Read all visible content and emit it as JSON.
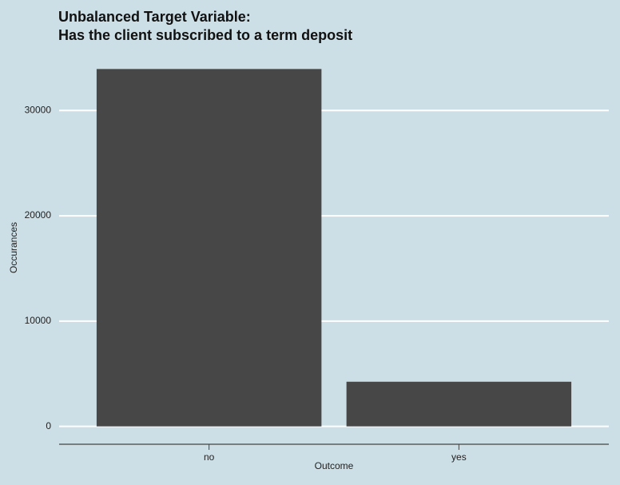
{
  "chart_data": {
    "type": "bar",
    "title": [
      "Unbalanced Target Variable:",
      "Has the client subscribed to a term deposit"
    ],
    "x_label": "Outcome",
    "y_label": "Occurances",
    "categories": [
      "no",
      "yes"
    ],
    "values": [
      33940,
      4240
    ],
    "color": "#474747",
    "ylim": [
      -1697,
      35637
    ],
    "yticks": [
      0,
      10000,
      20000,
      30000
    ],
    "grid": true
  }
}
